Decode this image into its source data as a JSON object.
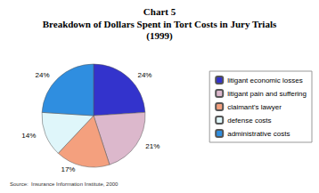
{
  "chart_data": {
    "type": "pie",
    "title": "Chart 5",
    "subtitle": [
      "Breakdown of Dollars Spent in Tort Costs in Jury Trials",
      "(1999)"
    ],
    "categories": [
      "litigant economic losses",
      "litigant pain and suffering",
      "claimant's lawyer",
      "defense costs",
      "administrative costs"
    ],
    "values": [
      24,
      21,
      17,
      14,
      24
    ],
    "value_labels": [
      "24%",
      "21%",
      "17%",
      "14%",
      "24%"
    ],
    "colors": [
      "#3333cc",
      "#dcb8cc",
      "#f4a07e",
      "#dff6fa",
      "#2f8ee0"
    ],
    "data_labels": true,
    "legend": "right",
    "annotations": [
      "Source:  Insurance Information Institute, 2000"
    ]
  }
}
